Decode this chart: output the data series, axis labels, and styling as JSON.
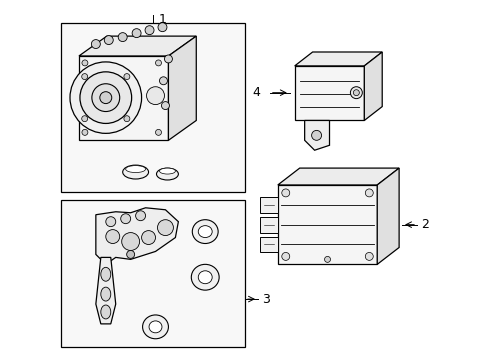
{
  "bg": "#ffffff",
  "lc": "#000000",
  "fc_white": "#ffffff",
  "fc_light": "#f0f0f0",
  "fc_mid": "#e0e0e0",
  "fc_dark": "#c8c8c8"
}
